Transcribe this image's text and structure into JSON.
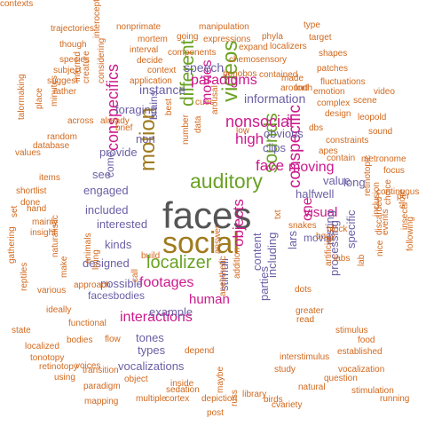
{
  "palette": {
    "orange": "#d2691e",
    "violet": "#6b5fa5",
    "magenta": "#cc1a8c",
    "green": "#6aa224",
    "gray": "#555555",
    "olive": "#a07a1e"
  },
  "words": [
    {
      "text": "faces",
      "color": "gray"
    },
    {
      "text": "social",
      "color": "olive"
    },
    {
      "text": "motion",
      "color": "olive"
    },
    {
      "text": "auditory",
      "color": "green"
    },
    {
      "text": "localizer",
      "color": "green"
    },
    {
      "text": "videos",
      "color": "green"
    },
    {
      "text": "different",
      "color": "green"
    },
    {
      "text": "sounds",
      "color": "green"
    },
    {
      "text": "conspecifics",
      "color": "magenta"
    },
    {
      "text": "conspecific",
      "color": "magenta"
    },
    {
      "text": "nonsocial",
      "color": "magenta"
    },
    {
      "text": "paradigms",
      "color": "magenta"
    },
    {
      "text": "interactions",
      "color": "magenta"
    },
    {
      "text": "footages",
      "color": "magenta"
    },
    {
      "text": "human",
      "color": "magenta"
    },
    {
      "text": "moving",
      "color": "magenta"
    },
    {
      "text": "visual",
      "color": "magenta"
    },
    {
      "text": "face",
      "color": "magenta"
    },
    {
      "text": "high",
      "color": "magenta"
    },
    {
      "text": "movies",
      "color": "magenta"
    },
    {
      "text": "one",
      "color": "magenta"
    },
    {
      "text": "objects",
      "color": "magenta"
    },
    {
      "text": "information",
      "color": "violet"
    },
    {
      "text": "speech",
      "color": "violet"
    },
    {
      "text": "instance",
      "color": "violet"
    },
    {
      "text": "foraging",
      "color": "violet"
    },
    {
      "text": "provide",
      "color": "violet"
    },
    {
      "text": "engaged",
      "color": "violet"
    },
    {
      "text": "included",
      "color": "violet"
    },
    {
      "text": "interested",
      "color": "violet"
    },
    {
      "text": "kinds",
      "color": "violet"
    },
    {
      "text": "designed",
      "color": "violet"
    },
    {
      "text": "possible",
      "color": "violet"
    },
    {
      "text": "facesbodies",
      "color": "violet"
    },
    {
      "text": "tones",
      "color": "violet"
    },
    {
      "text": "example",
      "color": "violet"
    },
    {
      "text": "types",
      "color": "violet"
    },
    {
      "text": "vocalizations",
      "color": "violet"
    },
    {
      "text": "stimuli",
      "color": "violet"
    },
    {
      "text": "parties",
      "color": "violet"
    },
    {
      "text": "content",
      "color": "violet"
    },
    {
      "text": "including",
      "color": "violet"
    },
    {
      "text": "processing",
      "color": "violet"
    },
    {
      "text": "movie",
      "color": "violet"
    },
    {
      "text": "resting",
      "color": "violet"
    },
    {
      "text": "specific",
      "color": "violet"
    },
    {
      "text": "halfwell",
      "color": "violet"
    },
    {
      "text": "value",
      "color": "violet"
    },
    {
      "text": "clips",
      "color": "violet"
    },
    {
      "text": "obvious",
      "color": "violet"
    },
    {
      "text": "brains",
      "color": "violet"
    },
    {
      "text": "non",
      "color": "violet"
    },
    {
      "text": "come",
      "color": "violet"
    },
    {
      "text": "see",
      "color": "violet"
    },
    {
      "text": "long",
      "color": "violet"
    },
    {
      "text": "lars",
      "color": "violet"
    },
    {
      "text": "nonprimate",
      "color": "orange"
    },
    {
      "text": "manipulation",
      "color": "orange"
    },
    {
      "text": "phyla",
      "color": "orange"
    },
    {
      "text": "type",
      "color": "orange"
    },
    {
      "text": "trajectories",
      "color": "orange"
    },
    {
      "text": "interoceptive",
      "color": "orange"
    },
    {
      "text": "mortem",
      "color": "orange"
    },
    {
      "text": "going",
      "color": "orange"
    },
    {
      "text": "expressions",
      "color": "orange"
    },
    {
      "text": "target",
      "color": "orange"
    },
    {
      "text": "though",
      "color": "orange"
    },
    {
      "text": "interval",
      "color": "orange"
    },
    {
      "text": "components",
      "color": "orange"
    },
    {
      "text": "expand",
      "color": "orange"
    },
    {
      "text": "localizers",
      "color": "orange"
    },
    {
      "text": "shapes",
      "color": "orange"
    },
    {
      "text": "species",
      "color": "orange"
    },
    {
      "text": "decide",
      "color": "orange"
    },
    {
      "text": "chemosensory",
      "color": "orange"
    },
    {
      "text": "patches",
      "color": "orange"
    },
    {
      "text": "subject",
      "color": "orange"
    },
    {
      "text": "context",
      "color": "orange"
    },
    {
      "text": "bonobos",
      "color": "orange"
    },
    {
      "text": "contained",
      "color": "orange"
    },
    {
      "text": "suggest",
      "color": "orange"
    },
    {
      "text": "application",
      "color": "orange"
    },
    {
      "text": "made",
      "color": "orange"
    },
    {
      "text": "forth",
      "color": "orange"
    },
    {
      "text": "fluctuations",
      "color": "orange"
    },
    {
      "text": "rather",
      "color": "orange"
    },
    {
      "text": "creature",
      "color": "orange"
    },
    {
      "text": "inferred",
      "color": "orange"
    },
    {
      "text": "considering",
      "color": "orange"
    },
    {
      "text": "around",
      "color": "orange"
    },
    {
      "text": "complex",
      "color": "orange"
    },
    {
      "text": "emotion",
      "color": "orange"
    },
    {
      "text": "video",
      "color": "orange"
    },
    {
      "text": "design",
      "color": "orange"
    },
    {
      "text": "scene",
      "color": "orange"
    },
    {
      "text": "leopold",
      "color": "orange"
    },
    {
      "text": "across",
      "color": "orange"
    },
    {
      "text": "brief",
      "color": "orange"
    },
    {
      "text": "already",
      "color": "orange"
    },
    {
      "text": "cues",
      "color": "orange"
    },
    {
      "text": "arousal",
      "color": "orange"
    },
    {
      "text": "dbs",
      "color": "orange"
    },
    {
      "text": "sound",
      "color": "orange"
    },
    {
      "text": "constraints",
      "color": "orange"
    },
    {
      "text": "apes",
      "color": "orange"
    },
    {
      "text": "contain",
      "color": "orange"
    },
    {
      "text": "metronome",
      "color": "orange"
    },
    {
      "text": "minutes",
      "color": "orange"
    },
    {
      "text": "database",
      "color": "orange"
    },
    {
      "text": "random",
      "color": "orange"
    },
    {
      "text": "values",
      "color": "orange"
    },
    {
      "text": "place",
      "color": "orange"
    },
    {
      "text": "talormaking",
      "color": "orange"
    },
    {
      "text": "shortlist",
      "color": "orange"
    },
    {
      "text": "items",
      "color": "orange"
    },
    {
      "text": "done",
      "color": "orange"
    },
    {
      "text": "mainly",
      "color": "orange"
    },
    {
      "text": "hand",
      "color": "orange"
    },
    {
      "text": "insight",
      "color": "orange"
    },
    {
      "text": "set",
      "color": "orange"
    },
    {
      "text": "naturalistic",
      "color": "orange"
    },
    {
      "text": "gathering",
      "color": "orange"
    },
    {
      "text": "reptiles",
      "color": "orange"
    },
    {
      "text": "various",
      "color": "orange"
    },
    {
      "text": "state",
      "color": "orange"
    },
    {
      "text": "localized",
      "color": "orange"
    },
    {
      "text": "retinotopy",
      "color": "orange"
    },
    {
      "text": "tonotopy",
      "color": "orange"
    },
    {
      "text": "using",
      "color": "orange"
    },
    {
      "text": "transition",
      "color": "orange"
    },
    {
      "text": "voices",
      "color": "orange"
    },
    {
      "text": "paradigm",
      "color": "orange"
    },
    {
      "text": "mapping",
      "color": "orange"
    },
    {
      "text": "object",
      "color": "orange"
    },
    {
      "text": "multiple",
      "color": "orange"
    },
    {
      "text": "sedation",
      "color": "orange"
    },
    {
      "text": "inside",
      "color": "orange"
    },
    {
      "text": "cortex",
      "color": "orange"
    },
    {
      "text": "depiction",
      "color": "orange"
    },
    {
      "text": "post",
      "color": "orange"
    },
    {
      "text": "maybe",
      "color": "orange"
    },
    {
      "text": "russ",
      "color": "orange"
    },
    {
      "text": "library",
      "color": "orange"
    },
    {
      "text": "birds",
      "color": "orange"
    },
    {
      "text": "cvariety",
      "color": "orange"
    },
    {
      "text": "natural",
      "color": "orange"
    },
    {
      "text": "question",
      "color": "orange"
    },
    {
      "text": "stimulation",
      "color": "orange"
    },
    {
      "text": "running",
      "color": "orange"
    },
    {
      "text": "vocalization",
      "color": "orange"
    },
    {
      "text": "study",
      "color": "orange"
    },
    {
      "text": "interstimulus",
      "color": "orange"
    },
    {
      "text": "established",
      "color": "orange"
    },
    {
      "text": "food",
      "color": "orange"
    },
    {
      "text": "stimulus",
      "color": "orange"
    },
    {
      "text": "read",
      "color": "orange"
    },
    {
      "text": "greater",
      "color": "orange"
    },
    {
      "text": "dots",
      "color": "orange"
    },
    {
      "text": "body",
      "color": "orange"
    },
    {
      "text": "block",
      "color": "orange"
    },
    {
      "text": "labs",
      "color": "orange"
    },
    {
      "text": "lab",
      "color": "orange"
    },
    {
      "text": "artificial",
      "color": "orange"
    },
    {
      "text": "discarded",
      "color": "orange"
    },
    {
      "text": "nice",
      "color": "orange"
    },
    {
      "text": "inclusion",
      "color": "orange"
    },
    {
      "text": "events",
      "color": "orange"
    },
    {
      "text": "choice",
      "color": "orange"
    },
    {
      "text": "following",
      "color": "orange"
    },
    {
      "text": "insects",
      "color": "orange"
    },
    {
      "text": "store",
      "color": "orange"
    },
    {
      "text": "retinotopic",
      "color": "orange"
    },
    {
      "text": "continuous",
      "color": "orange"
    },
    {
      "text": "focus",
      "color": "orange"
    },
    {
      "text": "per",
      "color": "orange"
    },
    {
      "text": "snakes",
      "color": "orange"
    },
    {
      "text": "txt",
      "color": "orange"
    },
    {
      "text": "answer",
      "color": "orange"
    },
    {
      "text": "anesthetic",
      "color": "orange"
    },
    {
      "text": "addition",
      "color": "orange"
    },
    {
      "text": "flow",
      "color": "orange"
    },
    {
      "text": "depend",
      "color": "orange"
    },
    {
      "text": "bodies",
      "color": "orange"
    },
    {
      "text": "functional",
      "color": "orange"
    },
    {
      "text": "ideally",
      "color": "orange"
    },
    {
      "text": "make",
      "color": "orange"
    },
    {
      "text": "approach",
      "color": "orange"
    },
    {
      "text": "animals",
      "color": "orange"
    },
    {
      "text": "build",
      "color": "orange"
    },
    {
      "text": "call",
      "color": "orange"
    },
    {
      "text": "living",
      "color": "orange"
    },
    {
      "text": "low",
      "color": "orange"
    },
    {
      "text": "data",
      "color": "orange"
    },
    {
      "text": "best",
      "color": "orange"
    },
    {
      "text": "number",
      "color": "orange"
    },
    {
      "text": "contexts",
      "color": "orange"
    }
  ]
}
